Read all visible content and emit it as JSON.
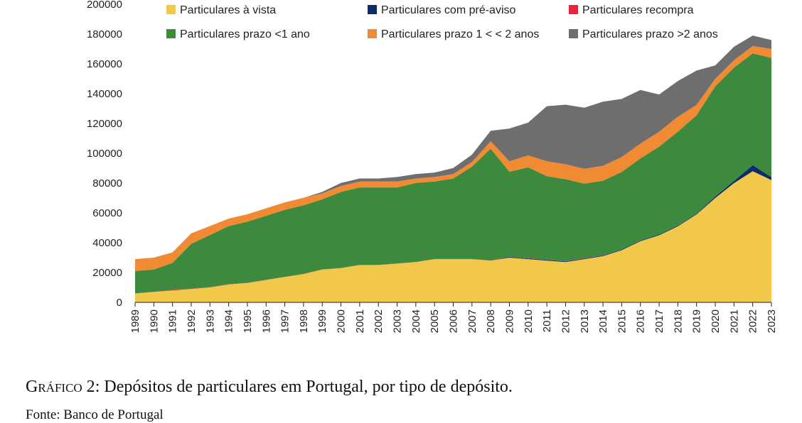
{
  "chart_data": {
    "type": "area",
    "stacked": true,
    "x": [
      1989,
      1990,
      1991,
      1992,
      1993,
      1994,
      1995,
      1996,
      1997,
      1998,
      1999,
      2000,
      2001,
      2002,
      2003,
      2004,
      2005,
      2006,
      2007,
      2008,
      2009,
      2010,
      2011,
      2012,
      2013,
      2014,
      2015,
      2016,
      2017,
      2018,
      2019,
      2020,
      2021,
      2022,
      2023
    ],
    "ylim": [
      0,
      200000
    ],
    "yticks": [
      0,
      20000,
      40000,
      60000,
      80000,
      100000,
      120000,
      140000,
      160000,
      180000,
      200000
    ],
    "xticks": [
      "1989",
      "1990",
      "1991",
      "1992",
      "1993",
      "1994",
      "1995",
      "1996",
      "1997",
      "1998",
      "1999",
      "2000",
      "2001",
      "2002",
      "2003",
      "2004",
      "2005",
      "2006",
      "2007",
      "2008",
      "2009",
      "2010",
      "2011",
      "2012",
      "2013",
      "2014",
      "2015",
      "2016",
      "2017",
      "2018",
      "2019",
      "2020",
      "2021",
      "2022",
      "2023"
    ],
    "legend_position": "top",
    "series": [
      {
        "name": "Particulares à vista",
        "color": "#f2c84b",
        "values": [
          6000,
          7000,
          8000,
          9000,
          10000,
          12000,
          13000,
          15000,
          17000,
          19000,
          22000,
          23000,
          25000,
          25000,
          26000,
          27000,
          29000,
          29000,
          29000,
          28000,
          30000,
          29000,
          28000,
          27000,
          29000,
          31000,
          35000,
          41000,
          45000,
          51000,
          59000,
          70000,
          80000,
          88000,
          82000
        ]
      },
      {
        "name": "Particulares com pré-aviso",
        "color": "#0d2c6c",
        "values": [
          0,
          0,
          0,
          0,
          0,
          0,
          0,
          0,
          0,
          0,
          0,
          0,
          0,
          0,
          0,
          0,
          0,
          0,
          0,
          0,
          500,
          500,
          500,
          500,
          500,
          500,
          500,
          500,
          500,
          500,
          500,
          1000,
          1500,
          4000,
          2000
        ]
      },
      {
        "name": "Particulares recompra",
        "color": "#e8253f",
        "values": [
          0,
          0,
          500,
          300,
          200,
          200,
          100,
          100,
          100,
          100,
          100,
          100,
          100,
          100,
          100,
          100,
          100,
          100,
          100,
          100,
          100,
          100,
          100,
          100,
          100,
          100,
          0,
          0,
          0,
          0,
          0,
          0,
          0,
          0,
          0
        ]
      },
      {
        "name": "Particulares prazo <1 ano",
        "color": "#3d8a3f",
        "values": [
          15000,
          15000,
          18000,
          30000,
          35000,
          39000,
          41000,
          43000,
          45000,
          46000,
          47000,
          51000,
          52000,
          52000,
          51000,
          53000,
          52000,
          54000,
          62000,
          75000,
          57000,
          61000,
          56000,
          55000,
          50000,
          50000,
          52000,
          55000,
          59000,
          63000,
          66000,
          74000,
          76000,
          75000,
          80000
        ]
      },
      {
        "name": "Particulares prazo 1 < < 2 anos",
        "color": "#f08a33",
        "values": [
          8000,
          8000,
          7000,
          7000,
          6000,
          5000,
          5000,
          5000,
          5000,
          5000,
          4000,
          4000,
          4000,
          4000,
          4000,
          3000,
          3000,
          3000,
          3000,
          5000,
          7000,
          8000,
          10000,
          10000,
          10000,
          10000,
          10000,
          10000,
          10000,
          10000,
          7000,
          5000,
          5000,
          5000,
          6000
        ]
      },
      {
        "name": "Particulares prazo >2 anos",
        "color": "#6e6e6e",
        "values": [
          0,
          0,
          0,
          0,
          0,
          0,
          0,
          0,
          0,
          0,
          1000,
          2000,
          2000,
          2000,
          3000,
          3000,
          3000,
          4000,
          5000,
          7000,
          22000,
          22000,
          37000,
          40000,
          41000,
          43000,
          39000,
          36000,
          25000,
          24000,
          23000,
          9000,
          9000,
          7000,
          6000
        ]
      }
    ]
  },
  "caption": {
    "label_small_caps": "Gráfico 2",
    "label_suffix": ":",
    "text": " Depósitos de particulares em Portugal, por tipo de depósito."
  },
  "source": "Fonte: Banco de Portugal"
}
